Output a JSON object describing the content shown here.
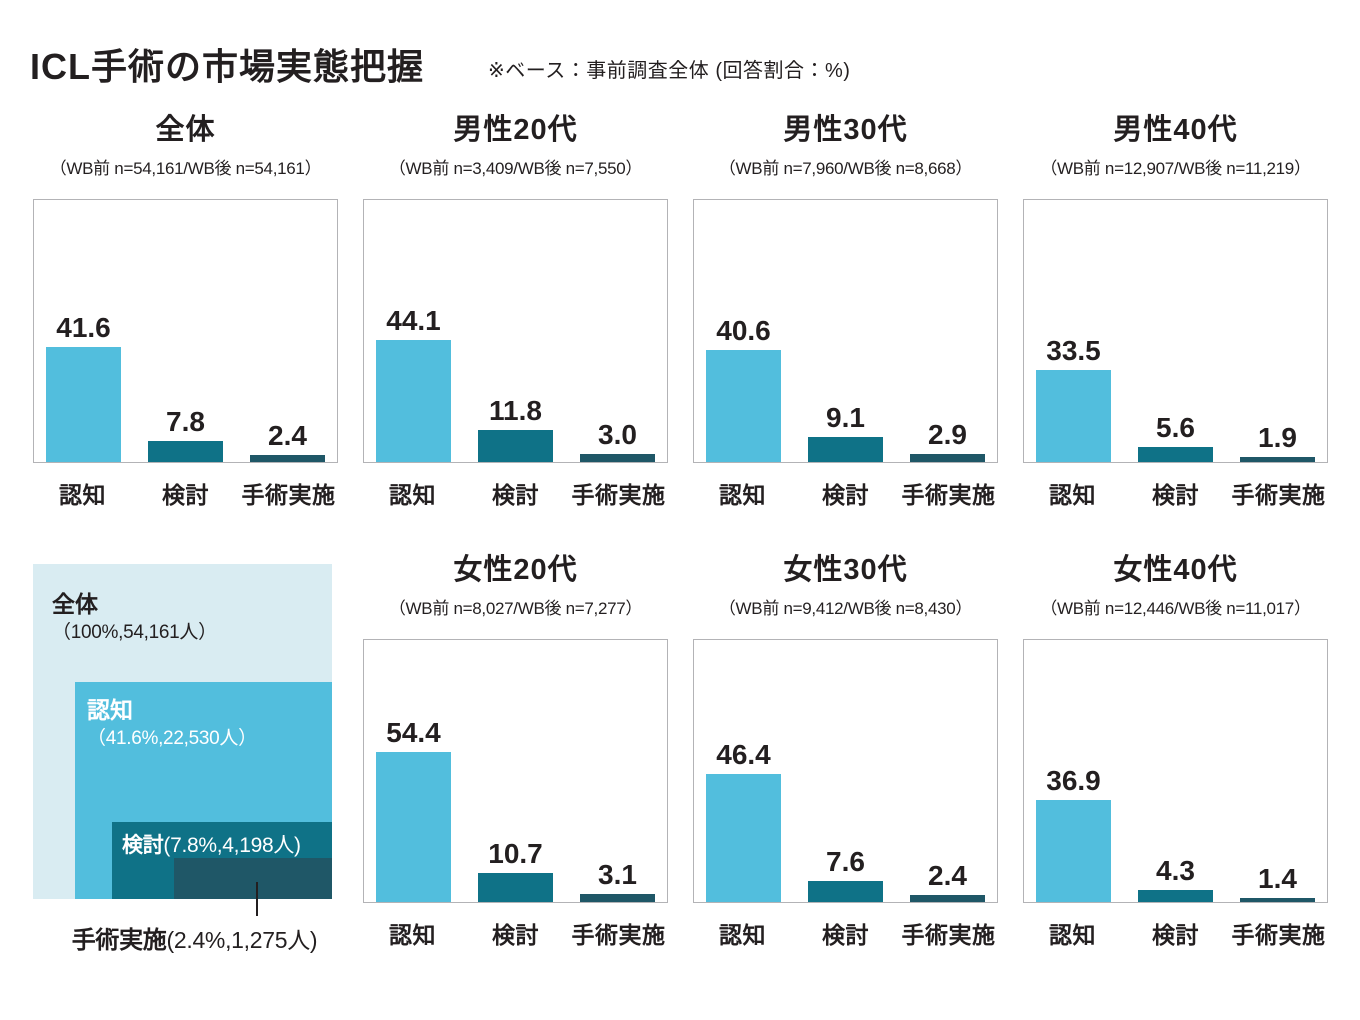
{
  "header": {
    "title": "ICL手術の市場実態把握",
    "note": "※ベース：事前調査全体 (回答割合：%)"
  },
  "colors": {
    "awareness": "#52bedd",
    "consideration": "#0f7287",
    "surgery": "#1f5767",
    "funnel_background": "#d9ecf2",
    "text": "#231f20"
  },
  "categories": [
    "認知",
    "検討",
    "手術実施"
  ],
  "chart_data": [
    {
      "type": "bar",
      "title": "全体",
      "subtitle": "（WB前 n=54,161/WB後 n=54,161）",
      "categories": [
        "認知",
        "検討",
        "手術実施"
      ],
      "values": [
        41.6,
        7.8,
        2.4
      ],
      "value_labels": [
        "41.6",
        "7.8",
        "2.4"
      ],
      "ylim": [
        0,
        95
      ],
      "grid": false,
      "unit": "%"
    },
    {
      "type": "bar",
      "title": "男性20代",
      "subtitle": "（WB前 n=3,409/WB後 n=7,550）",
      "categories": [
        "認知",
        "検討",
        "手術実施"
      ],
      "values": [
        44.1,
        11.8,
        3.0
      ],
      "value_labels": [
        "44.1",
        "11.8",
        "3.0"
      ],
      "ylim": [
        0,
        95
      ],
      "grid": false,
      "unit": "%"
    },
    {
      "type": "bar",
      "title": "男性30代",
      "subtitle": "（WB前 n=7,960/WB後 n=8,668）",
      "categories": [
        "認知",
        "検討",
        "手術実施"
      ],
      "values": [
        40.6,
        9.1,
        2.9
      ],
      "value_labels": [
        "40.6",
        "9.1",
        "2.9"
      ],
      "ylim": [
        0,
        95
      ],
      "grid": false,
      "unit": "%"
    },
    {
      "type": "bar",
      "title": "男性40代",
      "subtitle": "（WB前 n=12,907/WB後 n=11,219）",
      "categories": [
        "認知",
        "検討",
        "手術実施"
      ],
      "values": [
        33.5,
        5.6,
        1.9
      ],
      "value_labels": [
        "33.5",
        "5.6",
        "1.9"
      ],
      "ylim": [
        0,
        95
      ],
      "grid": false,
      "unit": "%"
    },
    {
      "type": "bar",
      "title": "女性20代",
      "subtitle": "（WB前 n=8,027/WB後 n=7,277）",
      "categories": [
        "認知",
        "検討",
        "手術実施"
      ],
      "values": [
        54.4,
        10.7,
        3.1
      ],
      "value_labels": [
        "54.4",
        "10.7",
        "3.1"
      ],
      "ylim": [
        0,
        95
      ],
      "grid": false,
      "unit": "%"
    },
    {
      "type": "bar",
      "title": "女性30代",
      "subtitle": "（WB前 n=9,412/WB後 n=8,430）",
      "categories": [
        "認知",
        "検討",
        "手術実施"
      ],
      "values": [
        46.4,
        7.6,
        2.4
      ],
      "value_labels": [
        "46.4",
        "7.6",
        "2.4"
      ],
      "ylim": [
        0,
        95
      ],
      "grid": false,
      "unit": "%"
    },
    {
      "type": "bar",
      "title": "女性40代",
      "subtitle": "（WB前 n=12,446/WB後 n=11,017）",
      "categories": [
        "認知",
        "検討",
        "手術実施"
      ],
      "values": [
        36.9,
        4.3,
        1.4
      ],
      "value_labels": [
        "36.9",
        "4.3",
        "1.4"
      ],
      "ylim": [
        0,
        95
      ],
      "grid": false,
      "unit": "%"
    },
    {
      "type": "table",
      "title": "全体 ネスト図",
      "rows": [
        {
          "label": "全体",
          "detail": "（100%,54,161人）",
          "percent": 100,
          "count": 54161
        },
        {
          "label": "認知",
          "detail": "（41.6%,22,530人）",
          "percent": 41.6,
          "count": 22530
        },
        {
          "label": "検討",
          "detail": "(7.8%,4,198人)",
          "percent": 7.8,
          "count": 4198
        },
        {
          "label": "手術実施",
          "detail": "(2.4%,1,275人)",
          "percent": 2.4,
          "count": 1275
        }
      ]
    }
  ]
}
